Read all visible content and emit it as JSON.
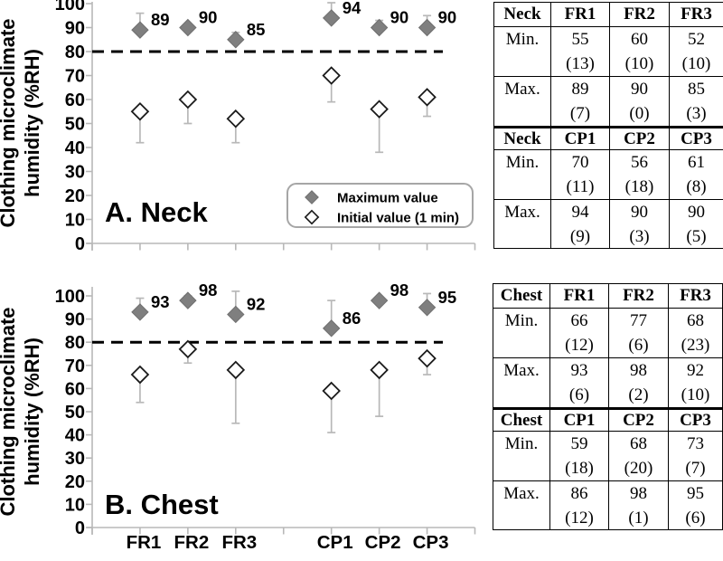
{
  "figure": {
    "background": "#ffffff",
    "description": "Clothing microclimate humidity scatter panels with summary tables"
  },
  "chart_data": [
    {
      "type": "scatter",
      "panel_label": "A. Neck",
      "ylabel": "Clothing microclimate humidity (%RH)",
      "ylabel_lines": [
        "Clothing microclimate",
        "humidity (%RH)"
      ],
      "ylim": [
        0,
        100
      ],
      "ytick_step": 10,
      "reference_line_y": 80,
      "categories": [
        "FR1",
        "FR2",
        "FR3",
        "CP1",
        "CP2",
        "CP3"
      ],
      "show_category_labels": false,
      "legend": {
        "visible": true,
        "position": "lower-right"
      },
      "series": [
        {
          "name": "Maximum value",
          "marker": "filled-diamond",
          "sd_direction": "up",
          "annotated": true,
          "values": [
            89,
            90,
            85,
            94,
            90,
            90
          ],
          "sd": [
            7,
            0,
            3,
            9,
            3,
            5
          ]
        },
        {
          "name": "Initial value (1 min)",
          "marker": "open-diamond",
          "sd_direction": "down",
          "annotated": false,
          "values": [
            55,
            60,
            52,
            70,
            56,
            61
          ],
          "sd": [
            13,
            10,
            10,
            11,
            18,
            8
          ]
        }
      ]
    },
    {
      "type": "scatter",
      "panel_label": "B. Chest",
      "ylabel": "Clothing microclimate humidity (%RH)",
      "ylabel_lines": [
        "Clothing microclimate",
        "humidity (%RH)"
      ],
      "ylim": [
        0,
        100
      ],
      "ytick_step": 10,
      "reference_line_y": 80,
      "categories": [
        "FR1",
        "FR2",
        "FR3",
        "CP1",
        "CP2",
        "CP3"
      ],
      "show_category_labels": true,
      "legend": {
        "visible": false
      },
      "series": [
        {
          "name": "Maximum value",
          "marker": "filled-diamond",
          "sd_direction": "up",
          "annotated": true,
          "values": [
            93,
            98,
            92,
            86,
            98,
            95
          ],
          "sd": [
            6,
            2,
            10,
            12,
            1,
            6
          ]
        },
        {
          "name": "Initial value (1 min)",
          "marker": "open-diamond",
          "sd_direction": "down",
          "annotated": false,
          "values": [
            66,
            77,
            68,
            59,
            68,
            73
          ],
          "sd": [
            12,
            6,
            23,
            18,
            20,
            7
          ]
        }
      ]
    }
  ],
  "tables": [
    {
      "name": "neck-table",
      "sections": [
        {
          "header": [
            "Neck",
            "FR1",
            "FR2",
            "FR3"
          ],
          "rows": [
            {
              "label": "Min.",
              "cells": [
                {
                  "value": "55",
                  "sd": "(13)"
                },
                {
                  "value": "60",
                  "sd": "(10)"
                },
                {
                  "value": "52",
                  "sd": "(10)"
                }
              ]
            },
            {
              "label": "Max.",
              "cells": [
                {
                  "value": "89",
                  "sd": "(7)"
                },
                {
                  "value": "90",
                  "sd": "(0)"
                },
                {
                  "value": "85",
                  "sd": "(3)"
                }
              ]
            }
          ]
        },
        {
          "header": [
            "Neck",
            "CP1",
            "CP2",
            "CP3"
          ],
          "rows": [
            {
              "label": "Min.",
              "cells": [
                {
                  "value": "70",
                  "sd": "(11)"
                },
                {
                  "value": "56",
                  "sd": "(18)"
                },
                {
                  "value": "61",
                  "sd": "(8)"
                }
              ]
            },
            {
              "label": "Max.",
              "cells": [
                {
                  "value": "94",
                  "sd": "(9)"
                },
                {
                  "value": "90",
                  "sd": "(3)"
                },
                {
                  "value": "90",
                  "sd": "(5)"
                }
              ]
            }
          ]
        }
      ]
    },
    {
      "name": "chest-table",
      "sections": [
        {
          "header": [
            "Chest",
            "FR1",
            "FR2",
            "FR3"
          ],
          "rows": [
            {
              "label": "Min.",
              "cells": [
                {
                  "value": "66",
                  "sd": "(12)"
                },
                {
                  "value": "77",
                  "sd": "(6)"
                },
                {
                  "value": "68",
                  "sd": "(23)"
                }
              ]
            },
            {
              "label": "Max.",
              "cells": [
                {
                  "value": "93",
                  "sd": "(6)"
                },
                {
                  "value": "98",
                  "sd": "(2)"
                },
                {
                  "value": "92",
                  "sd": "(10)"
                }
              ]
            }
          ]
        },
        {
          "header": [
            "Chest",
            "CP1",
            "CP2",
            "CP3"
          ],
          "rows": [
            {
              "label": "Min.",
              "cells": [
                {
                  "value": "59",
                  "sd": "(18)"
                },
                {
                  "value": "68",
                  "sd": "(20)"
                },
                {
                  "value": "73",
                  "sd": "(7)"
                }
              ]
            },
            {
              "label": "Max.",
              "cells": [
                {
                  "value": "86",
                  "sd": "(12)"
                },
                {
                  "value": "98",
                  "sd": "(1)"
                },
                {
                  "value": "95",
                  "sd": "(6)"
                }
              ]
            }
          ]
        }
      ]
    }
  ],
  "colors": {
    "background": "#ffffff",
    "marker_fill": "#7f7f7f",
    "marker_edge": "#6f6f6f",
    "open_marker_edge": "#1a1a1a",
    "whisker": "#b8b8b8",
    "axis": "#b8b8b8",
    "reference_line": "#000000",
    "legend_border": "#a6a6a6",
    "table_border": "#000000",
    "text": "#000000"
  }
}
